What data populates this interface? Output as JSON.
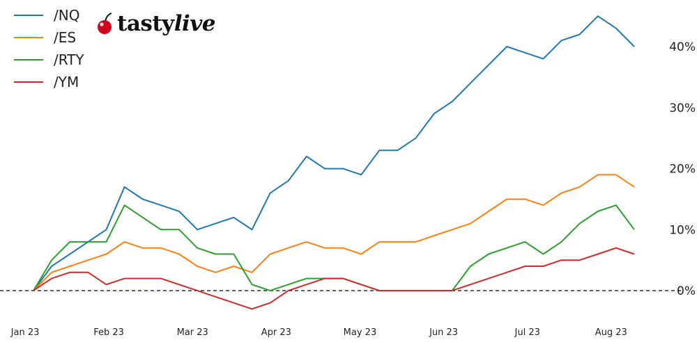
{
  "logo": {
    "text_a": "tasty",
    "text_b": "live"
  },
  "chart_data": {
    "type": "line",
    "x_ticks": [
      "Jan 23",
      "Feb 23",
      "Mar 23",
      "Apr 23",
      "May 23",
      "Jun 23",
      "Jul 23",
      "Aug 23"
    ],
    "y_ticks": [
      "0%",
      "10%",
      "20%",
      "30%",
      "40%"
    ],
    "ylim": [
      -5,
      46.5
    ],
    "x": [
      "Jan 3",
      "Jan 10",
      "Jan 17",
      "Jan 24",
      "Jan 31",
      "Feb 2",
      "Feb 7",
      "Feb 14",
      "Feb 21",
      "Feb 28",
      "Mar 7",
      "Mar 13",
      "Mar 21",
      "Mar 28",
      "Apr 4",
      "Apr 11",
      "Apr 18",
      "Apr 25",
      "May 2",
      "May 9",
      "May 16",
      "May 23",
      "May 30",
      "Jun 6",
      "Jun 13",
      "Jun 20",
      "Jun 27",
      "Jul 5",
      "Jul 12",
      "Jul 19",
      "Jul 26",
      "Aug 1",
      "Aug 8",
      "Aug 14"
    ],
    "reference_line": {
      "y": 0,
      "style": "dashed"
    },
    "series": [
      {
        "name": "/NQ",
        "color": "#1f77b4",
        "values": [
          0,
          4,
          6,
          8,
          10,
          17,
          15,
          14,
          13,
          10,
          11,
          12,
          10,
          16,
          18,
          22,
          20,
          20,
          19,
          23,
          23,
          25,
          29,
          31,
          34,
          37,
          40,
          39,
          38,
          41,
          42,
          45,
          43,
          40
        ]
      },
      {
        "name": "/ES",
        "color": "#ff7f0e",
        "values": [
          0,
          3,
          4,
          5,
          6,
          8,
          7,
          7,
          6,
          4,
          3,
          4,
          3,
          6,
          7,
          8,
          7,
          7,
          6,
          8,
          8,
          8,
          9,
          10,
          11,
          13,
          15,
          15,
          14,
          16,
          17,
          19,
          19,
          17
        ]
      },
      {
        "name": "/RTY",
        "color": "#2ca02c",
        "values": [
          0,
          5,
          8,
          8,
          8,
          14,
          12,
          10,
          10,
          7,
          6,
          6,
          1,
          0,
          1,
          2,
          2,
          2,
          1,
          0,
          0,
          0,
          0,
          0,
          4,
          6,
          7,
          8,
          6,
          8,
          11,
          13,
          14,
          10
        ]
      },
      {
        "name": "/YM",
        "color": "#d62728",
        "values": [
          0,
          2,
          3,
          3,
          1,
          2,
          2,
          2,
          1,
          0,
          -1,
          -2,
          -3,
          -2,
          0,
          1,
          2,
          2,
          1,
          0,
          0,
          0,
          0,
          0,
          1,
          2,
          3,
          4,
          4,
          5,
          5,
          6,
          7,
          6
        ]
      }
    ]
  }
}
